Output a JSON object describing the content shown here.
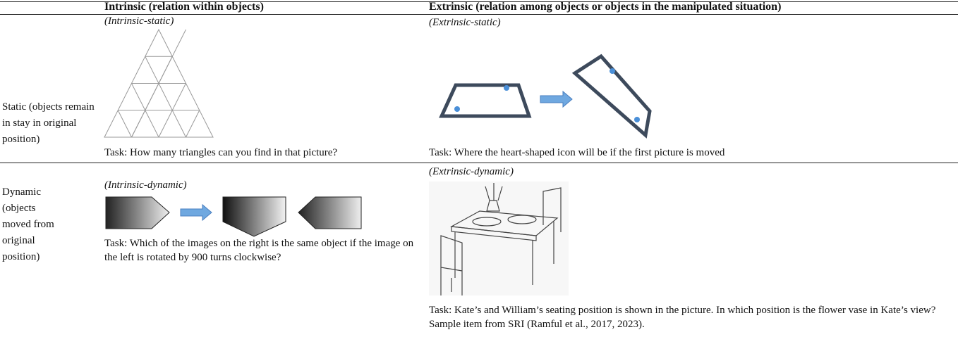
{
  "table": {
    "header": {
      "intrinsic": "Intrinsic (relation within objects)",
      "extrinsic": "Extrinsic (relation among objects or objects in the manipulated situation)"
    },
    "rows": [
      {
        "label": "Static (objects remain in stay in original position)",
        "intrinsic": {
          "caption": "(Intrinsic-static)",
          "task": "Task: How many triangles can you find in that picture?"
        },
        "extrinsic": {
          "caption": "(Extrinsic-static)",
          "task": "Task: Where the heart-shaped icon will be if the first picture is moved"
        }
      },
      {
        "label": "Dynamic (objects moved from original position)",
        "intrinsic": {
          "caption": "(Intrinsic-dynamic)",
          "task": "Task: Which of the images on the right is the same object if the image on the left is rotated by 900 turns clockwise?"
        },
        "extrinsic": {
          "caption": "(Extrinsic-dynamic)",
          "task": "Task: Kate’s and William’s seating position is shown in the picture. In which position is the flower vase in Kate’s view? Sample item from SRI (Ramful et al., 2017, 2023)."
        }
      }
    ]
  }
}
